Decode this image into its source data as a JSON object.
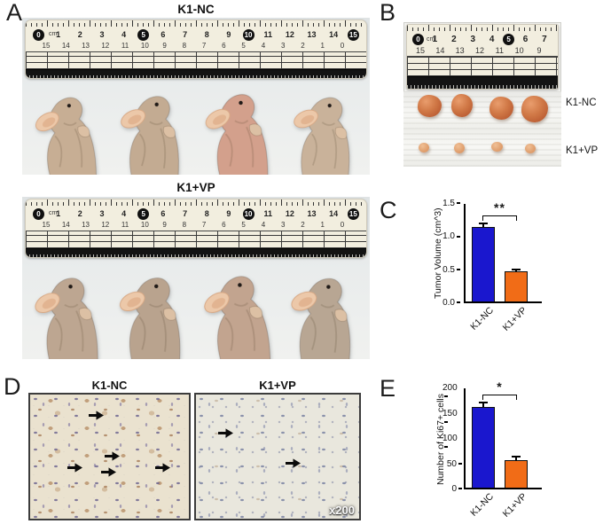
{
  "panels": {
    "a": "A",
    "b": "B",
    "c": "C",
    "d": "D",
    "e": "E"
  },
  "panel_a": {
    "group1_title": "K1-NC",
    "group2_title": "K1+VP",
    "ruler_unit": "cm",
    "ruler_top": [
      "0",
      "1",
      "2",
      "3",
      "4",
      "5",
      "6",
      "7",
      "8",
      "9",
      "10",
      "11",
      "12",
      "13",
      "14",
      "15"
    ],
    "ruler_bottom": [
      "15",
      "14",
      "13",
      "12",
      "11",
      "10",
      "9",
      "8",
      "7",
      "6",
      "5",
      "4",
      "3",
      "2",
      "1",
      "0"
    ]
  },
  "panel_b": {
    "ruler_unit": "cm",
    "ruler_top": [
      "0",
      "1",
      "2",
      "3",
      "4",
      "5",
      "6",
      "7"
    ],
    "ruler_bottom": [
      "15",
      "14",
      "13",
      "12",
      "11",
      "10",
      "9"
    ],
    "row1_label": "K1-NC",
    "row2_label": "K1+VP"
  },
  "panel_d": {
    "left_title": "K1-NC",
    "right_title": "K1+VP",
    "magnification": "x200"
  },
  "chart_data": [
    {
      "id": "C",
      "type": "bar",
      "title": "",
      "xlabel": "",
      "ylabel": "Tumor Volume (cm^3)",
      "categories": [
        "K1-NC",
        "K1+VP"
      ],
      "values": [
        1.15,
        0.46
      ],
      "errors": [
        0.07,
        0.04
      ],
      "ylim": [
        0,
        1.5
      ],
      "yticks": [
        "1.5",
        "1.0",
        "0.5",
        "0.0"
      ],
      "significance": "**",
      "bar_colors": [
        "#1a17ce",
        "#f16c17"
      ],
      "grid": false,
      "legend_position": "none"
    },
    {
      "id": "E",
      "type": "bar",
      "title": "",
      "xlabel": "",
      "ylabel": "Number of Ki67+ cells",
      "categories": [
        "K1-NC",
        "K1+VP"
      ],
      "values": [
        162,
        56
      ],
      "errors": [
        12,
        9
      ],
      "ylim": [
        0,
        200
      ],
      "yticks": [
        "200",
        "150",
        "100",
        "50",
        "0"
      ],
      "significance": "*",
      "bar_colors": [
        "#1a17ce",
        "#f16c17"
      ],
      "grid": false,
      "legend_position": "none"
    }
  ]
}
